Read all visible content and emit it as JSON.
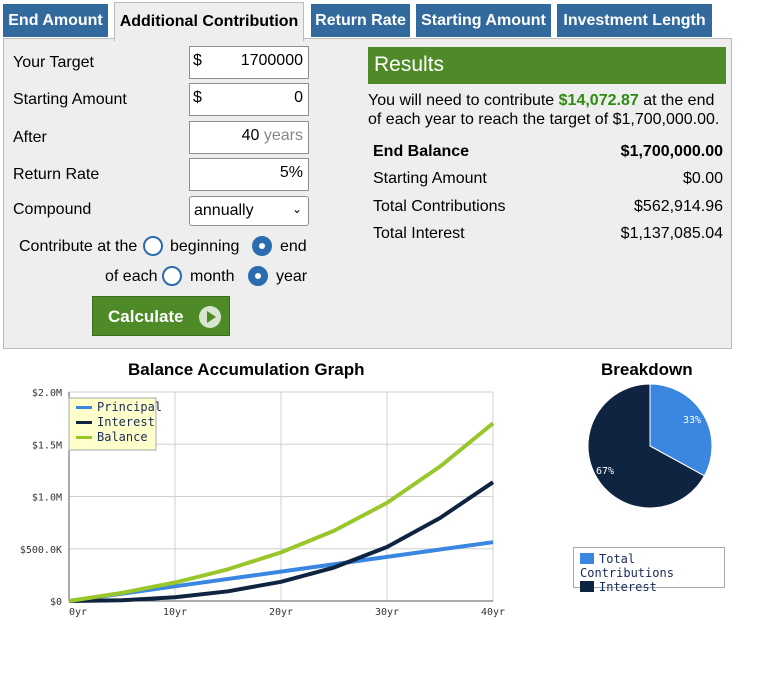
{
  "tabs": [
    "End Amount",
    "Additional Contribution",
    "Return Rate",
    "Starting Amount",
    "Investment Length"
  ],
  "form": {
    "target_label": "Your Target",
    "target_prefix": "$",
    "target_value": "1700000",
    "starting_label": "Starting Amount",
    "starting_prefix": "$",
    "starting_value": "0",
    "after_label": "After",
    "after_value": "40",
    "after_unit": "years",
    "rate_label": "Return Rate",
    "rate_value": "5%",
    "compound_label": "Compound",
    "compound_value": "annually",
    "contribute_label": "Contribute at the",
    "opt_beginning": "beginning",
    "opt_end": "end",
    "each_label": "of each",
    "opt_month": "month",
    "opt_year": "year",
    "calculate": "Calculate"
  },
  "results": {
    "heading": "Results",
    "line1_pre": "You will need to contribute",
    "line1_amount": "$14,072.87",
    "line1_post": "at the end",
    "line2": "of each year to reach the target of $1,700,000.00.",
    "rows": [
      {
        "label": "End Balance",
        "value": "$1,700,000.00"
      },
      {
        "label": "Starting Amount",
        "value": "$0.00"
      },
      {
        "label": "Total Contributions",
        "value": "$562,914.96"
      },
      {
        "label": "Total Interest",
        "value": "$1,137,085.04"
      }
    ]
  },
  "graph": {
    "title": "Balance Accumulation Graph",
    "y_ticks": [
      "$2.0M",
      "$1.5M",
      "$1.0M",
      "$500.0K",
      "$0"
    ],
    "x_ticks": [
      "0yr",
      "10yr",
      "20yr",
      "30yr",
      "40yr"
    ],
    "legend": [
      "Principal",
      "Interest",
      "Balance"
    ]
  },
  "breakdown": {
    "title": "Breakdown",
    "pct_contrib": "33%",
    "pct_interest": "67%",
    "legend_contrib": "Total Contributions",
    "legend_interest": "Interest"
  },
  "colors": {
    "tab": "#336a9e",
    "green": "#4e8a27",
    "principal": "#3a86e0",
    "interest": "#0f2440",
    "balance": "#99c72b"
  },
  "chart_data": {
    "type": "line",
    "xlabel": "",
    "ylabel": "",
    "x": [
      0,
      5,
      10,
      15,
      20,
      25,
      30,
      35,
      40
    ],
    "xlim": [
      0,
      40
    ],
    "ylim": [
      0,
      2000000
    ],
    "series": [
      {
        "name": "Principal",
        "values": [
          0,
          70364,
          140729,
          211093,
          281458,
          351822,
          422186,
          492551,
          562915
        ]
      },
      {
        "name": "Interest",
        "values": [
          0,
          7396,
          36274,
          92629,
          183885,
          320354,
          516818,
          794277,
          1137085
        ]
      },
      {
        "name": "Balance",
        "values": [
          0,
          77760,
          177003,
          303722,
          465343,
          672176,
          939004,
          1286828,
          1700000
        ]
      }
    ],
    "legend_position": "top-left",
    "grid": true
  },
  "pie_data": {
    "type": "pie",
    "labels": [
      "Total Contributions",
      "Interest"
    ],
    "values": [
      33,
      67
    ]
  }
}
